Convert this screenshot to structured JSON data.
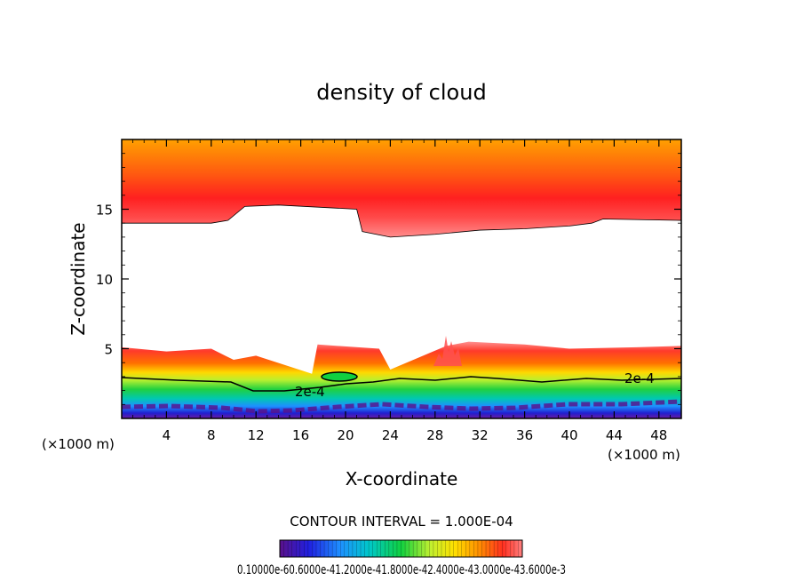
{
  "chart_data": {
    "type": "contour",
    "title": "density of cloud",
    "xlabel": "X-coordinate",
    "ylabel": "Z-coordinate",
    "x_unit_left": "(×1000 m)",
    "x_unit_right": "(×1000 m)",
    "xlim": [
      0,
      50
    ],
    "ylim": [
      0,
      20
    ],
    "xticks": [
      "4",
      "8",
      "12",
      "16",
      "20",
      "24",
      "28",
      "32",
      "36",
      "40",
      "44",
      "48"
    ],
    "yticks": [
      "5",
      "10",
      "15"
    ],
    "contour_interval_text": "CONTOUR INTERVAL = 1.000E-04",
    "contour_label": "2e-4",
    "colorbar_text": "0.10000e-60.6000e-41.2000e-41.8000e-42.4000e-43.0000e-43.6000e-3",
    "colormap": [
      "#6a1aa0",
      "#2020e0",
      "#1e90ff",
      "#00c8c8",
      "#10d040",
      "#c0f030",
      "#ffe000",
      "#ff8c00",
      "#ff3020",
      "#ff6060",
      "#ff9090"
    ],
    "upper_layer": {
      "base_z": [
        14.0,
        14.0,
        14.2,
        15.2,
        15.3,
        15.0,
        13.4,
        13.0,
        13.2,
        13.5,
        13.6,
        13.8,
        14.0,
        14.3,
        14.2
      ],
      "base_x": [
        0,
        8,
        9.5,
        11,
        14,
        21,
        21.5,
        24,
        28,
        32,
        36,
        40,
        42,
        43,
        50
      ]
    },
    "lower_layer": {
      "top_z": [
        5.1,
        4.8,
        5.0,
        4.2,
        4.5,
        3.2,
        5.3,
        5.0,
        3.5,
        5.2,
        5.5,
        5.3,
        5.0,
        5.1,
        5.2
      ],
      "top_x": [
        0,
        4,
        8,
        10,
        12,
        17,
        17.5,
        23,
        24,
        29,
        31,
        36,
        40,
        46,
        50
      ]
    }
  }
}
